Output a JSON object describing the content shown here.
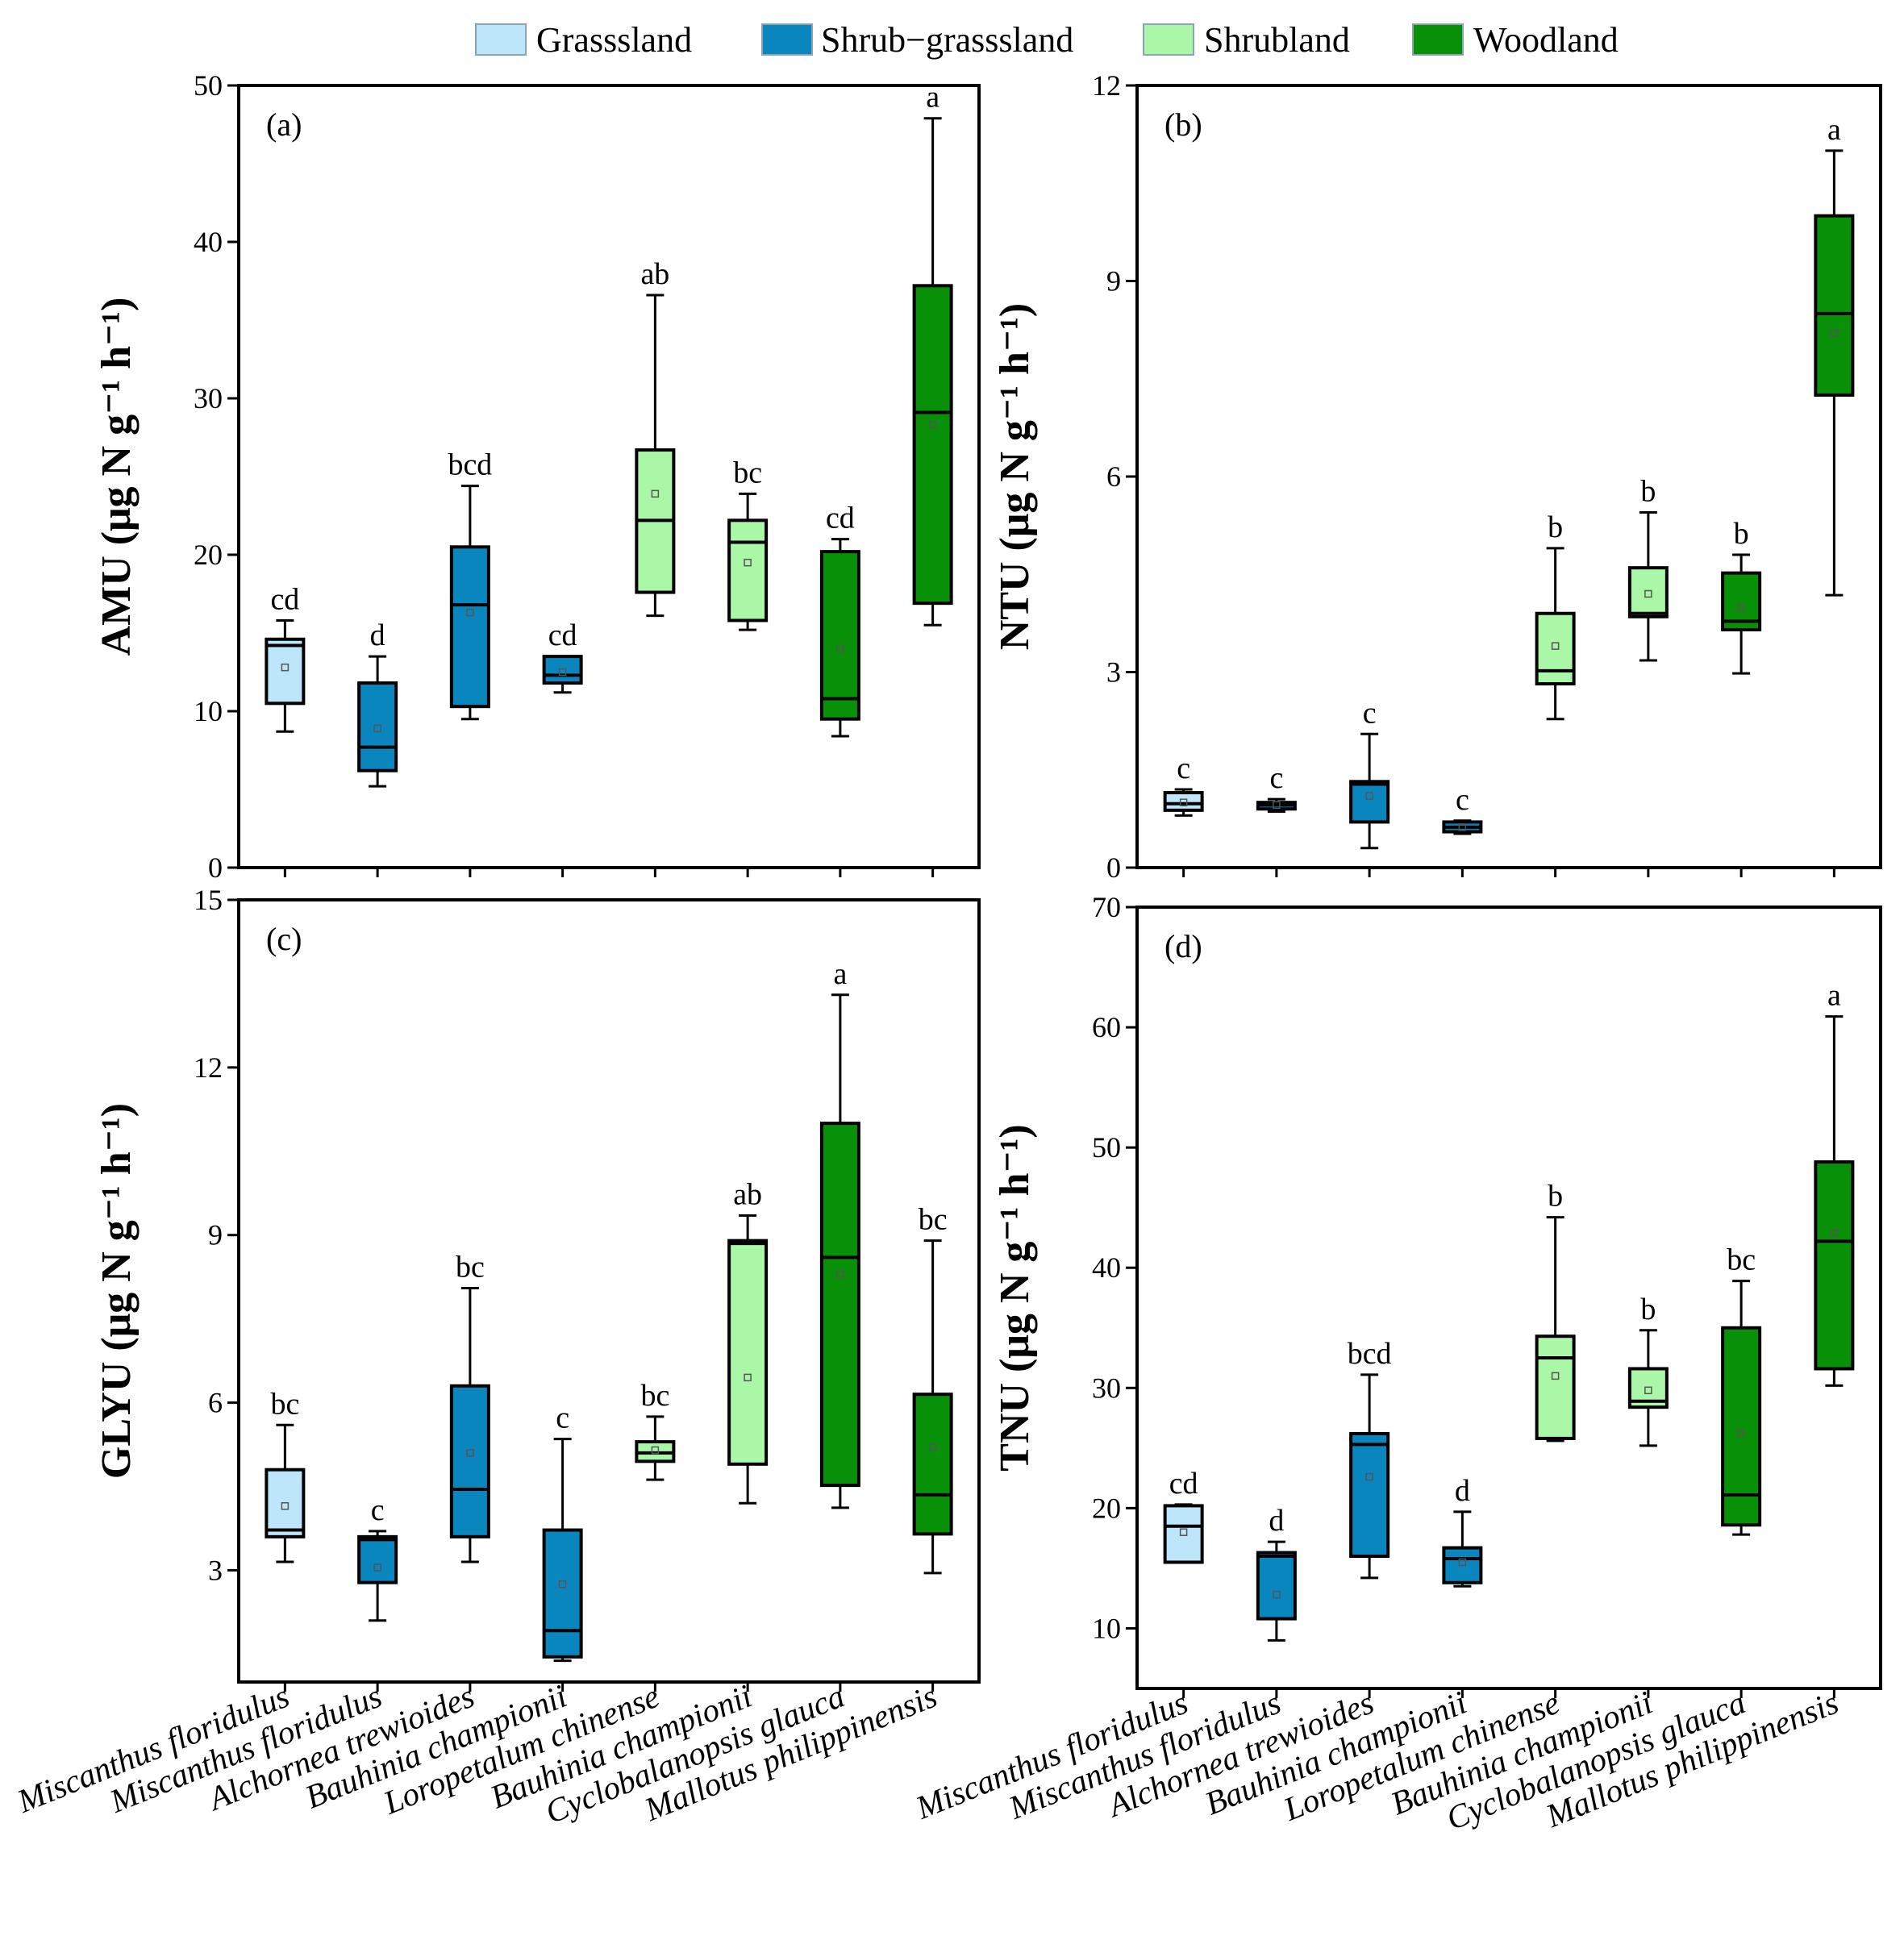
{
  "chart_data": {
    "type": "box",
    "legend": {
      "placement": "top-center",
      "entries": [
        {
          "label": "Grasssland",
          "color": "#BDE6FA"
        },
        {
          "label": "Shrub−grasssland",
          "color": "#0A86BF"
        },
        {
          "label": "Shrubland",
          "color": "#AAF7A8"
        },
        {
          "label": "Woodland",
          "color": "#089108"
        }
      ]
    },
    "categories": [
      "Miscanthus floridulus",
      "Miscanthus floridulus",
      "Alchornea trewioides",
      "Bauhinia championii",
      "Loropetalum chinense",
      "Bauhinia championii",
      "Cyclobalanopsis glauca",
      "Mallotus philippinensis"
    ],
    "groups": [
      0,
      1,
      1,
      1,
      2,
      2,
      3,
      3
    ],
    "panels": [
      {
        "label": "(a)",
        "ylabel": "AMU",
        "yunit": "(μg N g⁻¹ h⁻¹)",
        "ylim": [
          0,
          50
        ],
        "ticks": [
          0,
          10,
          20,
          30,
          40,
          50
        ],
        "boxes": [
          {
            "min": 8.7,
            "q1": 10.5,
            "median": 14.2,
            "q3": 14.6,
            "max": 15.8,
            "mean": 12.8,
            "letter": "cd"
          },
          {
            "min": 5.2,
            "q1": 6.2,
            "median": 7.7,
            "q3": 11.8,
            "max": 13.5,
            "mean": 8.9,
            "letter": "d"
          },
          {
            "min": 9.5,
            "q1": 10.3,
            "median": 16.8,
            "q3": 20.5,
            "max": 24.4,
            "mean": 16.3,
            "letter": "bcd"
          },
          {
            "min": 11.2,
            "q1": 11.8,
            "median": 12.3,
            "q3": 13.5,
            "max": 13.5,
            "mean": 12.5,
            "letter": "cd"
          },
          {
            "min": 16.1,
            "q1": 17.6,
            "median": 22.2,
            "q3": 26.7,
            "max": 36.6,
            "mean": 23.9,
            "letter": "ab"
          },
          {
            "min": 15.2,
            "q1": 15.8,
            "median": 20.8,
            "q3": 22.2,
            "max": 23.9,
            "mean": 19.5,
            "letter": "bc"
          },
          {
            "min": 8.4,
            "q1": 9.5,
            "median": 10.8,
            "q3": 20.2,
            "max": 21.0,
            "mean": 14.0,
            "letter": "cd"
          },
          {
            "min": 15.5,
            "q1": 16.9,
            "median": 29.1,
            "q3": 37.2,
            "max": 47.9,
            "mean": 28.3,
            "letter": "a"
          }
        ]
      },
      {
        "label": "(b)",
        "ylabel": "NTU",
        "yunit": "(μg N g⁻¹ h⁻¹)",
        "ylim": [
          0,
          12
        ],
        "ticks": [
          0,
          3,
          6,
          9,
          12
        ],
        "boxes": [
          {
            "min": 0.8,
            "q1": 0.88,
            "median": 0.98,
            "q3": 1.15,
            "max": 1.2,
            "mean": 1.0,
            "letter": "c"
          },
          {
            "min": 0.86,
            "q1": 0.9,
            "median": 0.96,
            "q3": 1.0,
            "max": 1.05,
            "mean": 0.96,
            "letter": "c"
          },
          {
            "min": 0.3,
            "q1": 0.7,
            "median": 1.28,
            "q3": 1.32,
            "max": 2.05,
            "mean": 1.1,
            "letter": "c"
          },
          {
            "min": 0.52,
            "q1": 0.55,
            "median": 0.62,
            "q3": 0.7,
            "max": 0.72,
            "mean": 0.62,
            "letter": "c"
          },
          {
            "min": 2.28,
            "q1": 2.82,
            "median": 3.02,
            "q3": 3.9,
            "max": 4.9,
            "mean": 3.4,
            "letter": "b"
          },
          {
            "min": 3.18,
            "q1": 3.85,
            "median": 3.9,
            "q3": 4.6,
            "max": 5.45,
            "mean": 4.2,
            "letter": "b"
          },
          {
            "min": 2.98,
            "q1": 3.65,
            "median": 3.78,
            "q3": 4.52,
            "max": 4.8,
            "mean": 4.0,
            "letter": "b"
          },
          {
            "min": 4.18,
            "q1": 7.25,
            "median": 8.5,
            "q3": 10.0,
            "max": 11.0,
            "mean": 8.2,
            "letter": "a"
          }
        ]
      },
      {
        "label": "(c)",
        "ylabel": "GLYU",
        "yunit": "(μg N g⁻¹ h⁻¹)",
        "ylim": [
          1.0,
          15
        ],
        "ticks": [
          3,
          6,
          9,
          12,
          15
        ],
        "boxes": [
          {
            "min": 3.15,
            "q1": 3.6,
            "median": 3.72,
            "q3": 4.8,
            "max": 5.6,
            "mean": 4.15,
            "letter": "bc"
          },
          {
            "min": 2.1,
            "q1": 2.78,
            "median": 3.55,
            "q3": 3.6,
            "max": 3.7,
            "mean": 3.05,
            "letter": "c"
          },
          {
            "min": 3.15,
            "q1": 3.6,
            "median": 4.45,
            "q3": 6.3,
            "max": 8.05,
            "mean": 5.1,
            "letter": "bc"
          },
          {
            "min": 1.38,
            "q1": 1.45,
            "median": 1.92,
            "q3": 3.72,
            "max": 5.35,
            "mean": 2.75,
            "letter": "c"
          },
          {
            "min": 4.62,
            "q1": 4.95,
            "median": 5.1,
            "q3": 5.3,
            "max": 5.75,
            "mean": 5.15,
            "letter": "bc"
          },
          {
            "min": 4.2,
            "q1": 4.9,
            "median": 8.85,
            "q3": 8.9,
            "max": 9.35,
            "mean": 6.45,
            "letter": "ab"
          },
          {
            "min": 4.12,
            "q1": 4.52,
            "median": 8.6,
            "q3": 11.0,
            "max": 13.3,
            "mean": 8.3,
            "letter": "a"
          },
          {
            "min": 2.95,
            "q1": 3.65,
            "median": 4.35,
            "q3": 6.15,
            "max": 8.9,
            "mean": 5.2,
            "letter": "bc"
          }
        ]
      },
      {
        "label": "(d)",
        "ylabel": "TNU",
        "yunit": "(μg N g⁻¹ h⁻¹)",
        "ylim": [
          5,
          70
        ],
        "ticks": [
          10,
          20,
          30,
          40,
          50,
          60,
          70
        ],
        "boxes": [
          {
            "min": 15.5,
            "q1": 15.5,
            "median": 18.5,
            "q3": 20.2,
            "max": 20.3,
            "mean": 18.0,
            "letter": "cd"
          },
          {
            "min": 9.0,
            "q1": 10.8,
            "median": 16.0,
            "q3": 16.3,
            "max": 17.2,
            "mean": 12.8,
            "letter": "d"
          },
          {
            "min": 14.2,
            "q1": 16.0,
            "median": 25.3,
            "q3": 26.2,
            "max": 31.1,
            "mean": 22.6,
            "letter": "bcd"
          },
          {
            "min": 13.5,
            "q1": 13.8,
            "median": 15.8,
            "q3": 16.7,
            "max": 19.7,
            "mean": 15.5,
            "letter": "d"
          },
          {
            "min": 25.6,
            "q1": 25.8,
            "median": 32.5,
            "q3": 34.3,
            "max": 44.2,
            "mean": 31.0,
            "letter": "b"
          },
          {
            "min": 25.2,
            "q1": 28.4,
            "median": 28.9,
            "q3": 31.6,
            "max": 34.8,
            "mean": 29.8,
            "letter": "b"
          },
          {
            "min": 17.8,
            "q1": 18.6,
            "median": 21.1,
            "q3": 35.0,
            "max": 38.9,
            "mean": 26.3,
            "letter": "bc"
          },
          {
            "min": 30.2,
            "q1": 31.6,
            "median": 42.2,
            "q3": 48.8,
            "max": 60.9,
            "mean": 42.9,
            "letter": "a"
          }
        ]
      }
    ]
  }
}
